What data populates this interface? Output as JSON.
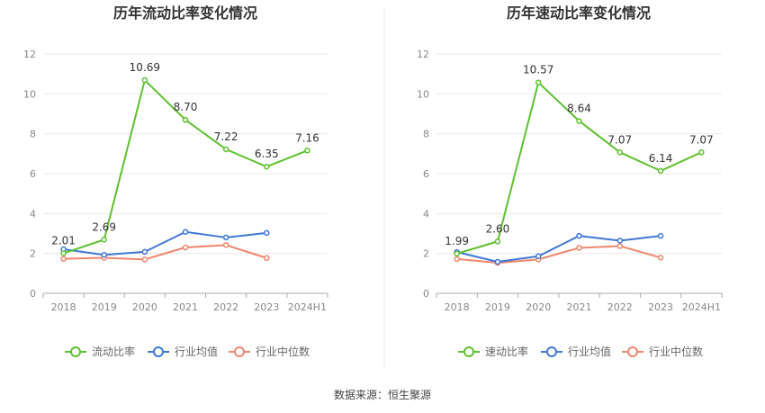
{
  "source": "数据来源：恒生聚源",
  "chart_data": [
    {
      "type": "line",
      "title": "历年流动比率变化情况",
      "categories": [
        "2018",
        "2019",
        "2020",
        "2021",
        "2022",
        "2023",
        "2024H1"
      ],
      "ylim": [
        0,
        12
      ],
      "yticks": [
        0,
        2,
        4,
        6,
        8,
        10,
        12
      ],
      "grid": true,
      "legend_position": "bottom",
      "series": [
        {
          "name": "流动比率",
          "color": "#5ec12e",
          "values": [
            2.01,
            2.69,
            10.69,
            8.7,
            7.22,
            6.35,
            7.16
          ],
          "labels": [
            "2.01",
            "2.69",
            "10.69",
            "8.70",
            "7.22",
            "6.35",
            "7.16"
          ]
        },
        {
          "name": "行业均值",
          "color": "#3f78d6",
          "values": [
            2.21,
            1.93,
            2.08,
            3.08,
            2.8,
            3.03,
            null
          ]
        },
        {
          "name": "行业中位数",
          "color": "#f0866b",
          "values": [
            1.73,
            1.78,
            1.7,
            2.3,
            2.42,
            1.77,
            null
          ]
        }
      ]
    },
    {
      "type": "line",
      "title": "历年速动比率变化情况",
      "categories": [
        "2018",
        "2019",
        "2020",
        "2021",
        "2022",
        "2023",
        "2024H1"
      ],
      "ylim": [
        0,
        12
      ],
      "yticks": [
        0,
        2,
        4,
        6,
        8,
        10,
        12
      ],
      "grid": true,
      "legend_position": "bottom",
      "series": [
        {
          "name": "速动比率",
          "color": "#5ec12e",
          "values": [
            1.99,
            2.6,
            10.57,
            8.64,
            7.07,
            6.14,
            7.07
          ],
          "labels": [
            "1.99",
            "2.60",
            "10.57",
            "8.64",
            "7.07",
            "6.14",
            "7.07"
          ]
        },
        {
          "name": "行业均值",
          "color": "#3f78d6",
          "values": [
            2.07,
            1.58,
            1.86,
            2.88,
            2.64,
            2.88,
            null
          ]
        },
        {
          "name": "行业中位数",
          "color": "#f0866b",
          "values": [
            1.72,
            1.53,
            1.7,
            2.28,
            2.37,
            1.79,
            null
          ]
        }
      ]
    }
  ]
}
